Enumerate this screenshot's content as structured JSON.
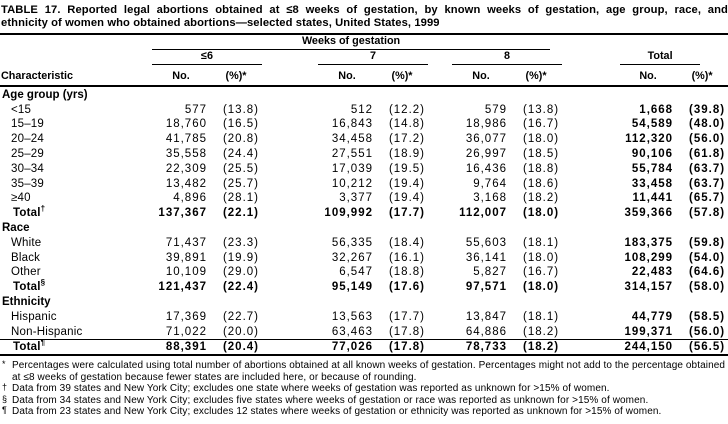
{
  "title": {
    "line1": "TABLE 17. Reported legal abortions obtained at ≤8 weeks of gestation, by known weeks of gestation, age group, race, and",
    "line2": "ethnicity of women who obtained abortions—selected states, United States, 1999"
  },
  "table": {
    "spanner_label": "Weeks of gestation",
    "characteristic_header": "Characteristic",
    "groups": [
      "≤6",
      "7",
      "8",
      "Total"
    ],
    "no_label": "No.",
    "pct_label": "(%)*",
    "sections": [
      {
        "label": "Age group (yrs)",
        "rows": [
          {
            "label": "<15",
            "values": [
              "577",
              "(13.8)",
              "512",
              "(12.2)",
              "579",
              "(13.8)",
              "1,668",
              "(39.8)"
            ]
          },
          {
            "label": "15–19",
            "values": [
              "18,760",
              "(16.5)",
              "16,843",
              "(14.8)",
              "18,986",
              "(16.7)",
              "54,589",
              "(48.0)"
            ]
          },
          {
            "label": "20–24",
            "values": [
              "41,785",
              "(20.8)",
              "34,458",
              "(17.2)",
              "36,077",
              "(18.0)",
              "112,320",
              "(56.0)"
            ]
          },
          {
            "label": "25–29",
            "values": [
              "35,558",
              "(24.4)",
              "27,551",
              "(18.9)",
              "26,997",
              "(18.5)",
              "90,106",
              "(61.8)"
            ]
          },
          {
            "label": "30–34",
            "values": [
              "22,309",
              "(25.5)",
              "17,039",
              "(19.5)",
              "16,436",
              "(18.8)",
              "55,784",
              "(63.7)"
            ]
          },
          {
            "label": "35–39",
            "values": [
              "13,482",
              "(25.7)",
              "10,212",
              "(19.4)",
              "9,764",
              "(18.6)",
              "33,458",
              "(63.7)"
            ]
          },
          {
            "label": "≥40",
            "values": [
              "4,896",
              "(28.1)",
              "3,377",
              "(19.4)",
              "3,168",
              "(18.2)",
              "11,441",
              "(65.7)"
            ]
          }
        ],
        "total": {
          "label": "Total",
          "sup": "†",
          "values": [
            "137,367",
            "(22.1)",
            "109,992",
            "(17.7)",
            "112,007",
            "(18.0)",
            "359,366",
            "(57.8)"
          ]
        }
      },
      {
        "label": "Race",
        "rows": [
          {
            "label": "White",
            "values": [
              "71,437",
              "(23.3)",
              "56,335",
              "(18.4)",
              "55,603",
              "(18.1)",
              "183,375",
              "(59.8)"
            ]
          },
          {
            "label": "Black",
            "values": [
              "39,891",
              "(19.9)",
              "32,267",
              "(16.1)",
              "36,141",
              "(18.0)",
              "108,299",
              "(54.0)"
            ]
          },
          {
            "label": "Other",
            "values": [
              "10,109",
              "(29.0)",
              "6,547",
              "(18.8)",
              "5,827",
              "(16.7)",
              "22,483",
              "(64.6)"
            ]
          }
        ],
        "total": {
          "label": "Total",
          "sup": "§",
          "values": [
            "121,437",
            "(22.4)",
            "95,149",
            "(17.6)",
            "97,571",
            "(18.0)",
            "314,157",
            "(58.0)"
          ]
        }
      },
      {
        "label": "Ethnicity",
        "rows": [
          {
            "label": "Hispanic",
            "values": [
              "17,369",
              "(22.7)",
              "13,563",
              "(17.7)",
              "13,847",
              "(18.1)",
              "44,779",
              "(58.5)"
            ]
          },
          {
            "label": "Non-Hispanic",
            "values": [
              "71,022",
              "(20.0)",
              "63,463",
              "(17.8)",
              "64,886",
              "(18.2)",
              "199,371",
              "(56.0)"
            ]
          }
        ],
        "total": {
          "label": "Total",
          "sup": "¶",
          "values": [
            "88,391",
            "(20.4)",
            "77,026",
            "(17.8)",
            "78,733",
            "(18.2)",
            "244,150",
            "(56.5)"
          ]
        }
      }
    ]
  },
  "footnotes": [
    {
      "sym": "*",
      "text": "Percentages were calculated using total number of abortions obtained at all known weeks of gestation. Percentages might not add to the percentage obtained at ≤8 weeks of gestation because fewer states are included here, or because of rounding."
    },
    {
      "sym": "†",
      "text": "Data from 39 states and New York City; excludes one state where weeks of gestation was reported as unknown for >15% of women."
    },
    {
      "sym": "§",
      "text": "Data from 34 states and New York City; excludes five states where weeks of gestation or race was reported as unknown for >15% of women."
    },
    {
      "sym": "¶",
      "text": "Data from 23 states and New York City; excludes 12 states where weeks of gestation or ethnicity was reported as unknown for >15% of women."
    }
  ]
}
